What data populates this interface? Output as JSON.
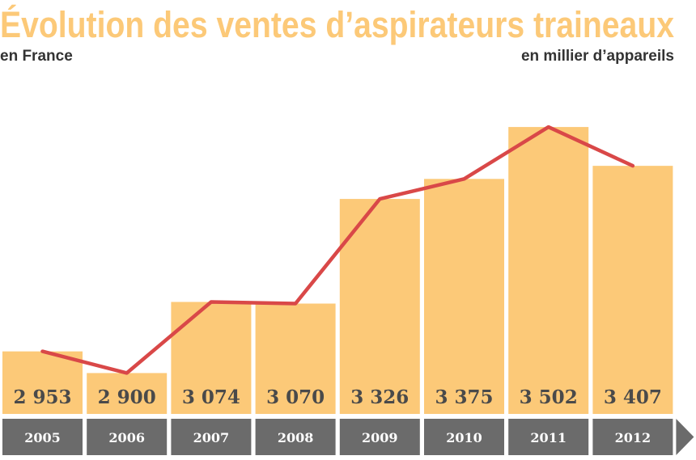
{
  "chart_data": {
    "type": "bar",
    "title": "Évolution des ventes d’aspirateurs traineaux",
    "subtitle": "en France",
    "unit": "en millier d’appareils",
    "categories": [
      "2005",
      "2006",
      "2007",
      "2008",
      "2009",
      "2010",
      "2011",
      "2012"
    ],
    "values": [
      2953,
      2900,
      3074,
      3070,
      3326,
      3375,
      3502,
      3407
    ],
    "value_labels": [
      "2 953",
      "2 900",
      "3 074",
      "3 070",
      "3 326",
      "3 375",
      "3 502",
      "3 407"
    ],
    "line_overlay": true,
    "ylim": [
      2800,
      3520
    ],
    "grid": false,
    "legend": "none",
    "colors": {
      "bar": "#fcc978",
      "line": "#d94848",
      "axis_band": "#6b6b6b",
      "title": "#fcc978",
      "text": "#333333"
    }
  }
}
